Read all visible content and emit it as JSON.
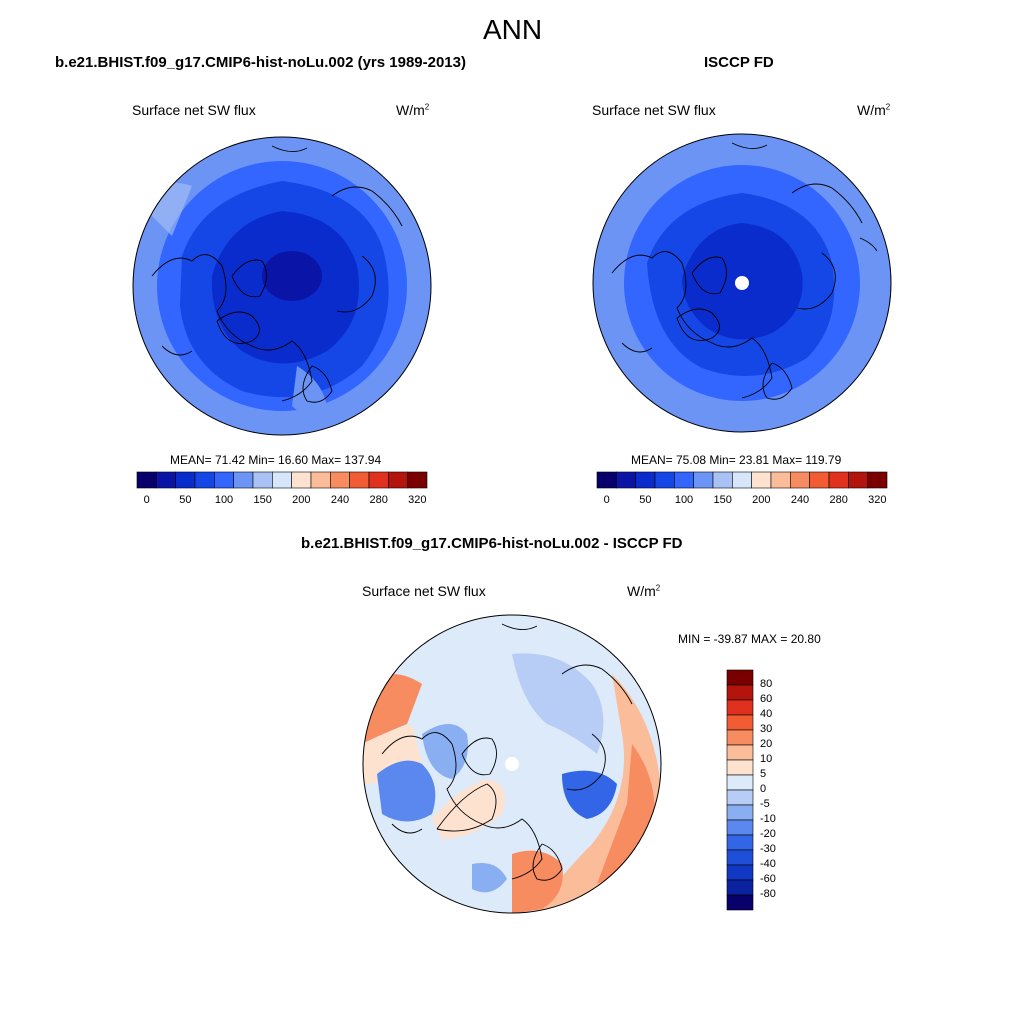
{
  "figure": {
    "title": "ANN"
  },
  "panels": {
    "model": {
      "title": "b.e21.BHIST.f09_g17.CMIP6-hist-noLu.002 (yrs 1989-2013)",
      "left_label": "Surface net SW flux",
      "units": "W/m",
      "units_sup": "2",
      "stats": "MEAN=  71.42  Min=  16.60  Max= 137.94"
    },
    "obs": {
      "title": "ISCCP FD",
      "left_label": "Surface net SW flux",
      "units": "W/m",
      "units_sup": "2",
      "stats": "MEAN=  75.08  Min=  23.81  Max= 119.79"
    },
    "diff": {
      "title": "b.e21.BHIST.f09_g17.CMIP6-hist-noLu.002 - ISCCP FD",
      "left_label": "Surface net SW flux",
      "units": "W/m",
      "units_sup": "2",
      "stats": "MIN = -39.87 MAX =  20.80"
    }
  },
  "colors": {
    "abs_levels": [
      "#08006b",
      "#0a15a8",
      "#0a2ccc",
      "#1447e6",
      "#3366ff",
      "#6b94f5",
      "#a8c2f5",
      "#d7e6fa",
      "#fde2d0",
      "#fbbc9a",
      "#f78c61",
      "#f25c33",
      "#e0301e",
      "#b3140c",
      "#7a0000"
    ],
    "diff_levels": [
      "#7a0000",
      "#b3140c",
      "#e0301e",
      "#f25c33",
      "#f78c61",
      "#fbbc9a",
      "#fde2d0",
      "#ddeaf9",
      "#b7cdf5",
      "#8aaef2",
      "#5b88ef",
      "#3366e6",
      "#1f4fd9",
      "#1038c4",
      "#0a22a0",
      "#08006b"
    ]
  },
  "chart_data": [
    {
      "type": "heatmap",
      "projection": "north-polar-stereographic",
      "title": "b.e21.BHIST.f09_g17.CMIP6-hist-noLu.002 (yrs 1989-2013)",
      "variable": "Surface net SW flux",
      "units": "W/m2",
      "stats": {
        "mean": 71.42,
        "min": 16.6,
        "max": 137.94
      },
      "colorbar_ticks": [
        "0",
        "50",
        "100",
        "150",
        "200",
        "240",
        "280",
        "320"
      ]
    },
    {
      "type": "heatmap",
      "projection": "north-polar-stereographic",
      "title": "ISCCP FD",
      "variable": "Surface net SW flux",
      "units": "W/m2",
      "stats": {
        "mean": 75.08,
        "min": 23.81,
        "max": 119.79
      },
      "colorbar_ticks": [
        "0",
        "50",
        "100",
        "150",
        "200",
        "240",
        "280",
        "320"
      ]
    },
    {
      "type": "heatmap",
      "projection": "north-polar-stereographic",
      "title": "b.e21.BHIST.f09_g17.CMIP6-hist-noLu.002 - ISCCP FD",
      "variable": "Surface net SW flux",
      "units": "W/m2",
      "stats": {
        "min": -39.87,
        "max": 20.8
      },
      "colorbar_ticks": [
        "80",
        "60",
        "40",
        "30",
        "20",
        "10",
        "5",
        "0",
        "-5",
        "-10",
        "-20",
        "-30",
        "-40",
        "-60",
        "-80"
      ]
    }
  ]
}
